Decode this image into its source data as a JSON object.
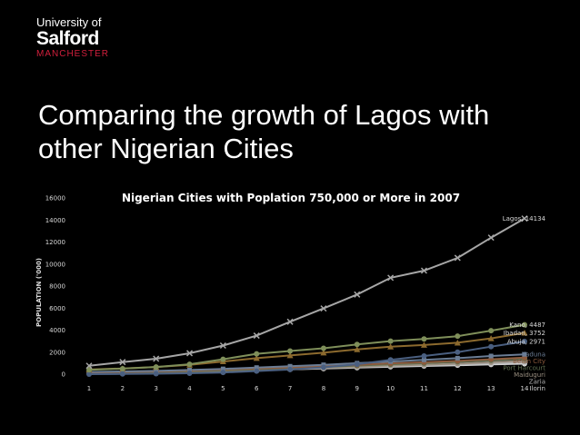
{
  "logo": {
    "line1": "University of",
    "line2": "Salford",
    "line3": "MANCHESTER"
  },
  "slide_title": "Comparing the growth of Lagos with other Nigerian Cities",
  "colors": {
    "background": "#000000",
    "text": "#ffffff",
    "brand_red": "#d21f3c"
  },
  "chart_data": {
    "type": "line",
    "title": "Nigerian Cities with Poplation 750,000 or More in 2007",
    "xlabel": "",
    "ylabel": "POPULATION ('000)",
    "x": [
      1,
      2,
      3,
      4,
      5,
      6,
      7,
      8,
      9,
      10,
      11,
      12,
      13,
      14
    ],
    "ylim": [
      0,
      16000
    ],
    "yticks": [
      0,
      2000,
      4000,
      6000,
      8000,
      10000,
      12000,
      14000,
      16000
    ],
    "grid": false,
    "series": [
      {
        "name": "Lagos",
        "color": "#a6a6a6",
        "marker": "x",
        "values": [
          762,
          1100,
          1400,
          1900,
          2600,
          3500,
          4760,
          5970,
          7233,
          8754,
          9400,
          10560,
          12400,
          14134
        ],
        "label": "Lagos, 14134"
      },
      {
        "name": "Kano",
        "color": "#7f8f5a",
        "marker": "circle",
        "values": [
          390,
          500,
          650,
          900,
          1350,
          1850,
          2100,
          2350,
          2700,
          3000,
          3200,
          3450,
          3950,
          4487
        ],
        "label": "Kano, 4487"
      },
      {
        "name": "Ibadan",
        "color": "#8c6a2e",
        "marker": "triangle",
        "values": [
          420,
          520,
          650,
          850,
          1150,
          1450,
          1700,
          1950,
          2250,
          2500,
          2650,
          2850,
          3250,
          3752
        ],
        "label": "Ibadan, 3752"
      },
      {
        "name": "Abuja",
        "color": "#4a5f80",
        "marker": "circle",
        "values": [
          0,
          20,
          40,
          80,
          150,
          280,
          420,
          620,
          900,
          1300,
          1650,
          2000,
          2500,
          2971
        ],
        "label": "Abuja, 2971"
      },
      {
        "name": "Kaduna",
        "color": "#6b7d95",
        "marker": "square",
        "values": [
          200,
          250,
          300,
          380,
          480,
          600,
          720,
          850,
          1000,
          1150,
          1300,
          1450,
          1650,
          1800
        ],
        "label": "Kaduna"
      },
      {
        "name": "Benin City",
        "color": "#8c5a3c",
        "marker": "circle",
        "values": [
          150,
          200,
          250,
          320,
          420,
          520,
          620,
          720,
          850,
          980,
          1080,
          1200,
          1350,
          1500
        ],
        "label": "Benin City"
      },
      {
        "name": "Port Harcourt",
        "color": "#5f6f50",
        "marker": "circle",
        "values": [
          120,
          160,
          200,
          260,
          350,
          450,
          560,
          660,
          780,
          900,
          1000,
          1120,
          1260,
          1400
        ],
        "label": "Port Harcourt"
      },
      {
        "name": "Maiduguri",
        "color": "#9a8f80",
        "marker": "circle",
        "values": [
          80,
          110,
          150,
          210,
          290,
          380,
          480,
          580,
          680,
          780,
          860,
          960,
          1080,
          1200
        ],
        "label": "Maiduguri"
      },
      {
        "name": "Zaria",
        "color": "#b0b0b0",
        "marker": "square",
        "values": [
          100,
          130,
          170,
          230,
          300,
          380,
          460,
          540,
          640,
          740,
          820,
          900,
          990,
          1100
        ],
        "label": "Zaria"
      },
      {
        "name": "Ilorin",
        "color": "#d0d0d0",
        "marker": "circle",
        "values": [
          110,
          140,
          180,
          230,
          290,
          360,
          430,
          510,
          590,
          670,
          740,
          810,
          880,
          950
        ],
        "label": "Ilorin"
      }
    ]
  }
}
